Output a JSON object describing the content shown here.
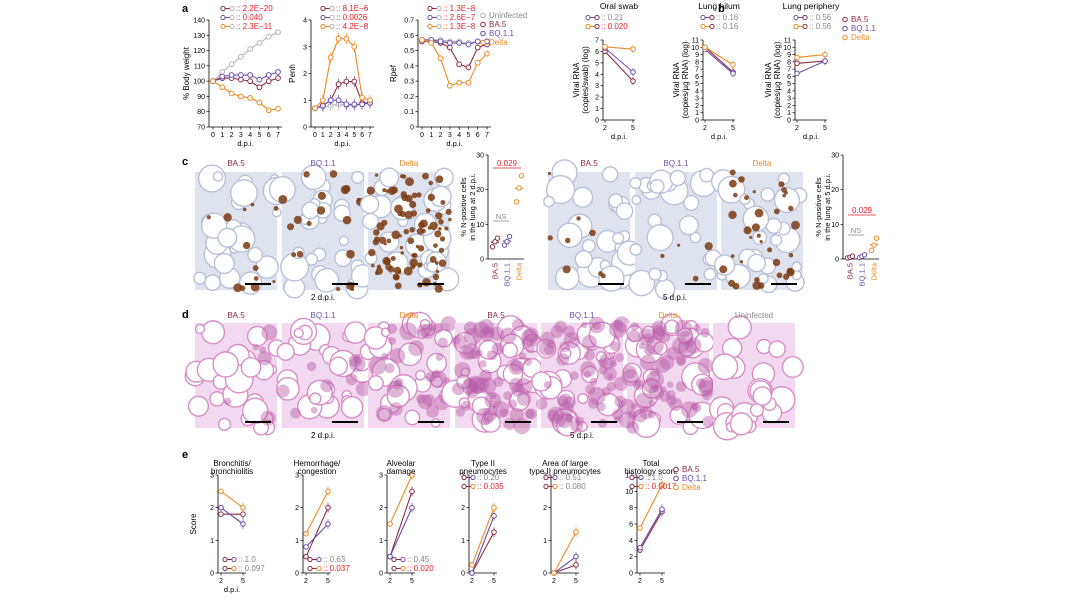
{
  "colors": {
    "ba5": "#8a2d4a",
    "bq": "#6a4fb0",
    "delta": "#ee8a22",
    "uninf": "#b4b4b4",
    "red": "#e8202a",
    "gray": "#888888",
    "tissue_ihc": "#dfe3ee",
    "stain": "#7a3b12",
    "he": "#d98ec8"
  },
  "panel_letters": [
    "a",
    "b",
    "c",
    "d",
    "e"
  ],
  "legend": {
    "uninfected": "Uninfected",
    "ba5": "BA.5",
    "bq": "BQ.1.1",
    "delta": "Delta"
  },
  "axes": {
    "dpi": "d.p.i.",
    "body_weight": "% Body weight",
    "penh": "Penh",
    "rpef": "Rpef",
    "score": "Score",
    "viral_swab": [
      "Viral RNA",
      "(copies/swab) (log)"
    ],
    "viral_lung": [
      "Viral RNA",
      "(copies/µg RNA) (log)"
    ],
    "npos2": [
      "% N-positive cells",
      "in the lung at 2 d.p.i."
    ],
    "npos5": [
      "% N-positive cells",
      "in the lung at 5 d.p.i."
    ]
  },
  "pvalues": {
    "a1": [
      ":: 2.2E−20",
      ":: 0.040",
      ":: 2.3E−11"
    ],
    "a2": [
      ":: 8.1E−6",
      ":: 0.0026",
      ":: 4.2E−8"
    ],
    "a3": [
      ":: 1.3E−8",
      ":: 2.6E−7",
      ":: 1.3E−8"
    ],
    "b1": [
      ":: 0.21",
      ":: 0.020"
    ],
    "b2": [
      ":: 0.16",
      ":: 0.16"
    ],
    "b3": [
      ":: 0.56",
      ":: 0.56"
    ],
    "e1": [
      ":: 1.0",
      ":: 0.097"
    ],
    "e2": [
      ":: 0.63",
      ":: 0.037"
    ],
    "e3": [
      ":: 0.45",
      ":: 0.020"
    ],
    "e4": [
      ":: 0.20",
      ":: 0.035"
    ],
    "e5": [
      ":: 0.51",
      ":: 0.080"
    ],
    "e6": [
      ":: 1.0",
      ":: 0.0017"
    ],
    "c1": "0.029",
    "c2": "0.029",
    "ns": "NS"
  },
  "titles": {
    "b": [
      "Oral swab",
      "Lung hilum",
      "Lung periphery"
    ],
    "e": [
      [
        "Bronchitis/",
        "bronchiolitis"
      ],
      [
        "Hemorrhage/",
        "congestion"
      ],
      [
        "Alveolar",
        "damage"
      ],
      [
        "Type II",
        "pneumocytes"
      ],
      [
        "Area of large",
        "type II pneumocytes"
      ],
      [
        "Total",
        "histology score"
      ]
    ]
  },
  "image_labels": {
    "c_left": [
      "BA.5",
      "BQ.1.1",
      "Delta"
    ],
    "c_right": [
      "BA.5",
      "BQ.1.1",
      "Delta"
    ],
    "d": [
      "BA.5",
      "BQ.1.1",
      "Delta",
      "BA.5",
      "BQ.1.1",
      "Delta",
      "Uninfected"
    ],
    "dpi2": "2 d.p.i.",
    "dpi5": "5 d.p.i."
  },
  "chart_data": [
    {
      "type": "line",
      "panel": "a",
      "x": [
        0,
        1,
        2,
        3,
        4,
        5,
        6,
        7
      ],
      "ylabel": "% Body weight",
      "xlabel": "d.p.i.",
      "ylim": [
        70,
        140
      ],
      "yticks": [
        70,
        80,
        90,
        100,
        110,
        120,
        130,
        140
      ],
      "series": [
        {
          "name": "Uninfected",
          "values": [
            100,
            106,
            111,
            116,
            121,
            125,
            129,
            132
          ]
        },
        {
          "name": "BA.5",
          "values": [
            100,
            102,
            102,
            101,
            100,
            96,
            100,
            102
          ]
        },
        {
          "name": "BQ.1.1",
          "values": [
            100,
            103,
            104,
            104,
            104,
            101,
            104,
            106
          ]
        },
        {
          "name": "Delta",
          "values": [
            100,
            96,
            92,
            90,
            89,
            86,
            81,
            82
          ]
        }
      ]
    },
    {
      "type": "line",
      "panel": "a",
      "x": [
        0,
        1,
        2,
        3,
        4,
        5,
        6,
        7
      ],
      "ylabel": "Penh",
      "xlabel": "d.p.i.",
      "ylim": [
        0,
        4
      ],
      "yticks": [
        0,
        1,
        2,
        3,
        4
      ],
      "series": [
        {
          "name": "Uninfected",
          "values": [
            0.7,
            0.75,
            0.8,
            0.85,
            0.8,
            0.8,
            0.85,
            0.9
          ]
        },
        {
          "name": "BA.5",
          "values": [
            0.7,
            0.8,
            1.0,
            1.6,
            1.7,
            1.7,
            0.9,
            0.9
          ]
        },
        {
          "name": "BQ.1.1",
          "values": [
            0.7,
            0.8,
            1.0,
            1.0,
            0.85,
            0.85,
            0.85,
            0.9
          ]
        },
        {
          "name": "Delta",
          "values": [
            0.7,
            1.0,
            2.6,
            3.3,
            3.3,
            3.0,
            1.1,
            1.0
          ]
        }
      ]
    },
    {
      "type": "line",
      "panel": "a",
      "x": [
        0,
        1,
        2,
        3,
        4,
        5,
        6,
        7
      ],
      "ylabel": "Rpef",
      "xlabel": "d.p.i.",
      "ylim": [
        0,
        0.7
      ],
      "yticks": [
        0,
        0.1,
        0.2,
        0.3,
        0.4,
        0.5,
        0.6,
        0.7
      ],
      "series": [
        {
          "name": "Uninfected",
          "values": [
            0.57,
            0.57,
            0.57,
            0.56,
            0.56,
            0.55,
            0.56,
            0.56
          ]
        },
        {
          "name": "BA.5",
          "values": [
            0.56,
            0.56,
            0.55,
            0.52,
            0.41,
            0.39,
            0.52,
            0.54
          ]
        },
        {
          "name": "BQ.1.1",
          "values": [
            0.57,
            0.57,
            0.56,
            0.55,
            0.55,
            0.54,
            0.56,
            0.56
          ]
        },
        {
          "name": "Delta",
          "values": [
            0.57,
            0.55,
            0.45,
            0.27,
            0.29,
            0.29,
            0.42,
            0.48
          ]
        }
      ]
    },
    {
      "type": "line",
      "panel": "b",
      "title": "Oral swab",
      "x": [
        2,
        5
      ],
      "ylabel": "Viral RNA (copies/swab) (log)",
      "xlabel": "d.p.i.",
      "ylim": [
        0,
        7
      ],
      "yticks": [
        0,
        1,
        2,
        3,
        4,
        5,
        6,
        7
      ],
      "series": [
        {
          "name": "BA.5",
          "values": [
            6.0,
            3.4
          ]
        },
        {
          "name": "BQ.1.1",
          "values": [
            6.3,
            4.2
          ]
        },
        {
          "name": "Delta",
          "values": [
            6.4,
            6.2
          ]
        }
      ]
    },
    {
      "type": "line",
      "panel": "b",
      "title": "Lung hilum",
      "x": [
        2,
        5
      ],
      "ylabel": "Viral RNA (copies/µg RNA) (log)",
      "xlabel": "d.p.i.",
      "ylim": [
        0,
        11
      ],
      "yticks": [
        0,
        1,
        2,
        3,
        4,
        5,
        6,
        7,
        8,
        9,
        10,
        11
      ],
      "series": [
        {
          "name": "BA.5",
          "values": [
            10.0,
            6.6
          ]
        },
        {
          "name": "BQ.1.1",
          "values": [
            9.7,
            6.4
          ]
        },
        {
          "name": "Delta",
          "values": [
            10.0,
            7.6
          ]
        }
      ]
    },
    {
      "type": "line",
      "panel": "b",
      "title": "Lung periphery",
      "x": [
        2,
        5
      ],
      "ylabel": "Viral RNA (copies/µg RNA) (log)",
      "xlabel": "d.p.i.",
      "ylim": [
        0,
        11
      ],
      "yticks": [
        0,
        1,
        2,
        3,
        4,
        5,
        6,
        7,
        8,
        9,
        10,
        11
      ],
      "series": [
        {
          "name": "BA.5",
          "values": [
            7.8,
            8.1
          ]
        },
        {
          "name": "BQ.1.1",
          "values": [
            6.4,
            8.1
          ]
        },
        {
          "name": "Delta",
          "values": [
            8.6,
            9.0
          ]
        }
      ]
    },
    {
      "type": "scatter",
      "panel": "c",
      "categories": [
        "BA.5",
        "BQ.1.1",
        "Delta"
      ],
      "ylabel": "% N-positive cells in the lung at 2 d.p.i.",
      "ylim": [
        0,
        30
      ],
      "yticks": [
        0,
        10,
        20,
        30
      ],
      "series": [
        {
          "name": "BA.5",
          "values": [
            3.5,
            5.0,
            6.0
          ]
        },
        {
          "name": "BQ.1.1",
          "values": [
            4.0,
            5.0,
            6.5
          ]
        },
        {
          "name": "Delta",
          "values": [
            16.5,
            20.5,
            24.0
          ]
        }
      ]
    },
    {
      "type": "scatter",
      "panel": "c",
      "categories": [
        "BA.5",
        "BQ.1.1",
        "Delta"
      ],
      "ylabel": "% N-positive cells in the lung at 5 d.p.i.",
      "ylim": [
        0,
        30
      ],
      "yticks": [
        0,
        10,
        20,
        30
      ],
      "series": [
        {
          "name": "BA.5",
          "values": [
            0.3,
            0.5,
            0.8
          ]
        },
        {
          "name": "BQ.1.1",
          "values": [
            0.4,
            0.8,
            1.2
          ]
        },
        {
          "name": "Delta",
          "values": [
            2.5,
            4.0,
            6.0
          ]
        }
      ]
    },
    {
      "type": "line",
      "panel": "e",
      "x": [
        2,
        5
      ],
      "ylabel": "Score",
      "xlabel": "d.p.i.",
      "ylim": [
        0,
        3
      ],
      "yticks": [
        0,
        1,
        2,
        3
      ],
      "series": [
        {
          "name": "BA.5",
          "values": [
            1.8,
            1.8
          ]
        },
        {
          "name": "BQ.1.1",
          "values": [
            2.0,
            1.5
          ]
        },
        {
          "name": "Delta",
          "values": [
            2.5,
            2.0
          ]
        }
      ]
    },
    {
      "type": "line",
      "panel": "e",
      "x": [
        2,
        5
      ],
      "ylim": [
        0,
        3
      ],
      "yticks": [
        0,
        1,
        2,
        3
      ],
      "series": [
        {
          "name": "BA.5",
          "values": [
            0.5,
            2.0
          ]
        },
        {
          "name": "BQ.1.1",
          "values": [
            0.8,
            1.5
          ]
        },
        {
          "name": "Delta",
          "values": [
            1.2,
            2.5
          ]
        }
      ]
    },
    {
      "type": "line",
      "panel": "e",
      "x": [
        2,
        5
      ],
      "ylim": [
        0,
        3
      ],
      "yticks": [
        0,
        1,
        2,
        3
      ],
      "series": [
        {
          "name": "BA.5",
          "values": [
            0.5,
            2.5
          ]
        },
        {
          "name": "BQ.1.1",
          "values": [
            0.5,
            2.0
          ]
        },
        {
          "name": "Delta",
          "values": [
            1.5,
            3.0
          ]
        }
      ]
    },
    {
      "type": "line",
      "panel": "e",
      "x": [
        2,
        5
      ],
      "ylim": [
        0,
        3
      ],
      "yticks": [
        0,
        1,
        2,
        3
      ],
      "series": [
        {
          "name": "BA.5",
          "values": [
            0.0,
            1.25
          ]
        },
        {
          "name": "BQ.1.1",
          "values": [
            0.0,
            1.75
          ]
        },
        {
          "name": "Delta",
          "values": [
            0.25,
            2.0
          ]
        }
      ]
    },
    {
      "type": "line",
      "panel": "e",
      "x": [
        2,
        5
      ],
      "ylim": [
        0,
        3
      ],
      "yticks": [
        0,
        1,
        2,
        3
      ],
      "series": [
        {
          "name": "BA.5",
          "values": [
            0.0,
            0.25
          ]
        },
        {
          "name": "BQ.1.1",
          "values": [
            0.0,
            0.5
          ]
        },
        {
          "name": "Delta",
          "values": [
            0.0,
            1.25
          ]
        }
      ]
    },
    {
      "type": "line",
      "panel": "e",
      "x": [
        2,
        5
      ],
      "ylim": [
        0,
        12
      ],
      "yticks": [
        0,
        2,
        4,
        6,
        8,
        10,
        12
      ],
      "series": [
        {
          "name": "BA.5",
          "values": [
            2.8,
            7.5
          ]
        },
        {
          "name": "BQ.1.1",
          "values": [
            3.1,
            7.8
          ]
        },
        {
          "name": "Delta",
          "values": [
            5.5,
            10.8
          ]
        }
      ]
    }
  ]
}
